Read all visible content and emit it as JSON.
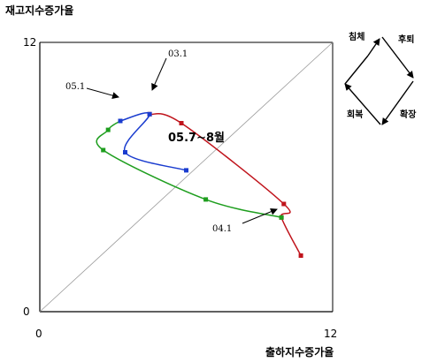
{
  "chart_data": {
    "type": "line",
    "xlabel": "출하지수증가율",
    "ylabel": "재고지수증가율",
    "xlim": [
      0,
      12
    ],
    "ylim": [
      0,
      12
    ],
    "x_ticks": [
      "0",
      "12"
    ],
    "y_ticks": [
      "0",
      "12"
    ],
    "grid": false,
    "reference_line": "diagonal",
    "period_label": "05.7~8월",
    "annotations": [
      {
        "text": "03.1",
        "at": [
          4.5,
          8.8
        ]
      },
      {
        "text": "05.1",
        "at": [
          3.3,
          8.5
        ]
      },
      {
        "text": "04.1",
        "at": [
          9.9,
          4.2
        ]
      }
    ],
    "series": [
      {
        "color": "#c0141c",
        "points": [
          [
            4.5,
            8.8
          ],
          [
            5.8,
            8.4
          ],
          [
            10.0,
            4.8
          ],
          [
            9.9,
            4.2
          ],
          [
            10.7,
            2.5
          ]
        ]
      },
      {
        "color": "#1e9e1e",
        "points": [
          [
            3.3,
            8.5
          ],
          [
            2.8,
            8.1
          ],
          [
            2.6,
            7.2
          ],
          [
            6.8,
            5.0
          ],
          [
            9.9,
            4.2
          ]
        ]
      },
      {
        "color": "#1a3ccf",
        "points": [
          [
            3.3,
            8.5
          ],
          [
            4.5,
            8.8
          ],
          [
            3.5,
            7.1
          ],
          [
            6.0,
            6.3
          ]
        ]
      }
    ]
  },
  "cycle_diagram": {
    "labels": [
      "침체",
      "후퇴",
      "회복",
      "확장"
    ]
  }
}
